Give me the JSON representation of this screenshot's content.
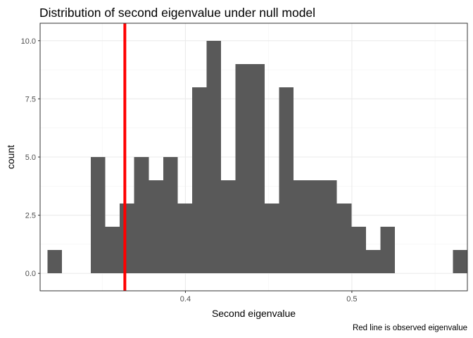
{
  "chart_data": {
    "type": "bar",
    "title": "Distribution of second eigenvalue under null model",
    "xlabel": "Second eigenvalue",
    "ylabel": "count",
    "caption": "Red line is observed eigenvalue",
    "binwidth": 0.0087,
    "bins": [
      {
        "x": 0.3214,
        "count": 1
      },
      {
        "x": 0.3301,
        "count": 0
      },
      {
        "x": 0.3388,
        "count": 0
      },
      {
        "x": 0.3475,
        "count": 5
      },
      {
        "x": 0.3562,
        "count": 2
      },
      {
        "x": 0.3649,
        "count": 3
      },
      {
        "x": 0.3736,
        "count": 5
      },
      {
        "x": 0.3823,
        "count": 4
      },
      {
        "x": 0.391,
        "count": 5
      },
      {
        "x": 0.3997,
        "count": 3
      },
      {
        "x": 0.4084,
        "count": 8
      },
      {
        "x": 0.4171,
        "count": 10
      },
      {
        "x": 0.4258,
        "count": 4
      },
      {
        "x": 0.4345,
        "count": 9
      },
      {
        "x": 0.4432,
        "count": 9
      },
      {
        "x": 0.4519,
        "count": 3
      },
      {
        "x": 0.4606,
        "count": 8
      },
      {
        "x": 0.4693,
        "count": 4
      },
      {
        "x": 0.478,
        "count": 4
      },
      {
        "x": 0.4867,
        "count": 4
      },
      {
        "x": 0.4954,
        "count": 3
      },
      {
        "x": 0.5041,
        "count": 2
      },
      {
        "x": 0.5128,
        "count": 1
      },
      {
        "x": 0.5215,
        "count": 2
      },
      {
        "x": 0.5302,
        "count": 0
      },
      {
        "x": 0.5389,
        "count": 0
      },
      {
        "x": 0.5476,
        "count": 0
      },
      {
        "x": 0.5563,
        "count": 0
      },
      {
        "x": 0.565,
        "count": 1
      }
    ],
    "observed_value": 0.3636,
    "observed_line_color": "#ff0000",
    "bar_color": "#595959",
    "xlim": [
      0.3127,
      0.5694
    ],
    "ylim": [
      -0.75,
      10.75
    ],
    "x_ticks": [
      {
        "value": 0.4,
        "label": "0.4"
      },
      {
        "value": 0.5,
        "label": "0.5"
      }
    ],
    "x_minor_ticks": [
      0.35,
      0.45,
      0.55
    ],
    "y_ticks": [
      {
        "value": 0,
        "label": "0.0"
      },
      {
        "value": 2.5,
        "label": "2.5"
      },
      {
        "value": 5,
        "label": "5.0"
      },
      {
        "value": 7.5,
        "label": "7.5"
      },
      {
        "value": 10,
        "label": "10.0"
      }
    ],
    "y_minor_ticks": [
      1.25,
      3.75,
      6.25,
      8.75
    ],
    "grid": true,
    "theme": "bw"
  }
}
